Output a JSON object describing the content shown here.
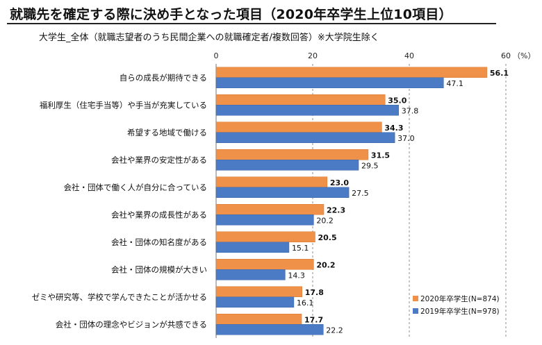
{
  "title": "就職先を確定する際に決め手となった項目（2020年卒学生上位10項目）",
  "subtitle": "大学生_全体（就職志望者のうち民間企業への就職確定者/複数回答）※大学院生除く",
  "colors": {
    "series_2020": "#f0914a",
    "series_2019": "#4a7bc4",
    "grid": "#8c8c8c"
  },
  "chart_data": {
    "type": "bar",
    "orientation": "horizontal",
    "title": "就職先を確定する際に決め手となった項目（2020年卒学生上位10項目）",
    "xlabel": "（%）",
    "xlim": [
      0,
      60
    ],
    "xticks": [
      0,
      20,
      40,
      60
    ],
    "tick_labels": [
      "0",
      "20",
      "40",
      "60"
    ],
    "unit_label": "（%）",
    "grid": true,
    "legend_position": "bottom-right",
    "categories": [
      "自らの成長が期待できる",
      "福利厚生（住宅手当等）や手当が充実している",
      "希望する地域で働ける",
      "会社や業界の安定性がある",
      "会社・団体で働く人が自分に合っている",
      "会社や業界の成長性がある",
      "会社・団体の知名度がある",
      "会社・団体の規模が大きい",
      "ゼミや研究等、学校で学んできたことが活かせる",
      "会社・団体の理念やビジョンが共感できる"
    ],
    "series": [
      {
        "name": "2020年卒学生(N=874)",
        "values": [
          56.1,
          35.0,
          34.3,
          31.5,
          23.0,
          22.3,
          20.5,
          20.2,
          17.8,
          17.7
        ],
        "labels": [
          "56.1",
          "35.0",
          "34.3",
          "31.5",
          "23.0",
          "22.3",
          "20.5",
          "20.2",
          "17.8",
          "17.7"
        ]
      },
      {
        "name": "2019年卒学生(N=978)",
        "values": [
          47.1,
          37.8,
          37.0,
          29.5,
          27.5,
          20.2,
          15.1,
          14.3,
          16.1,
          22.2
        ],
        "labels": [
          "47.1",
          "37.8",
          "37.0",
          "29.5",
          "27.5",
          "20.2",
          "15.1",
          "14.3",
          "16.1",
          "22.2"
        ]
      }
    ]
  }
}
